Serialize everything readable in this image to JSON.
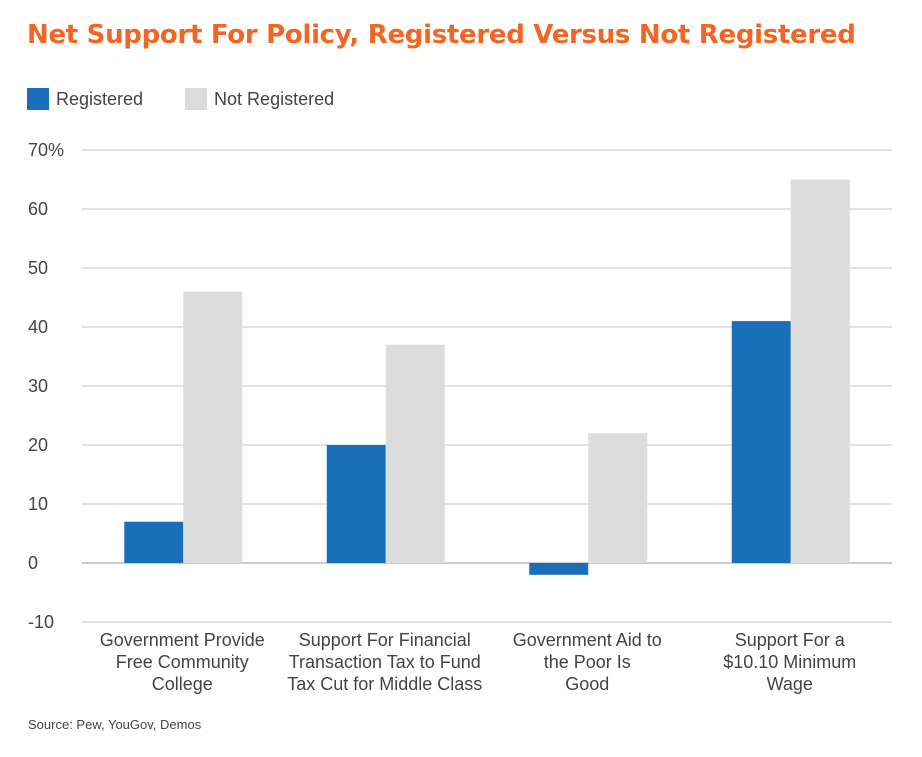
{
  "chart_data": {
    "type": "bar",
    "title": "Net Support For Policy, Registered Versus Not Registered",
    "categories": [
      [
        "Government Provide",
        "Free Community",
        "College"
      ],
      [
        "Support For Financial",
        "Transaction Tax to Fund",
        "Tax Cut for Middle Class"
      ],
      [
        "Government Aid to",
        "the Poor Is",
        "Good"
      ],
      [
        "Support For a",
        "$10.10 Minimum",
        "Wage"
      ]
    ],
    "series": [
      {
        "name": "Registered",
        "color": "#1a70b8",
        "values": [
          7,
          20,
          -2,
          41
        ]
      },
      {
        "name": "Not Registered",
        "color": "#dcdcdd",
        "values": [
          46,
          37,
          22,
          65
        ]
      }
    ],
    "yticks": [
      "70%",
      "60",
      "50",
      "40",
      "30",
      "20",
      "10",
      "0",
      "-10"
    ],
    "ytick_values": [
      70,
      60,
      50,
      40,
      30,
      20,
      10,
      0,
      -10
    ],
    "ylim": [
      -10,
      70
    ],
    "grid": true,
    "legend_position": "top-left"
  },
  "source": "Source: Pew, YouGov, Demos"
}
